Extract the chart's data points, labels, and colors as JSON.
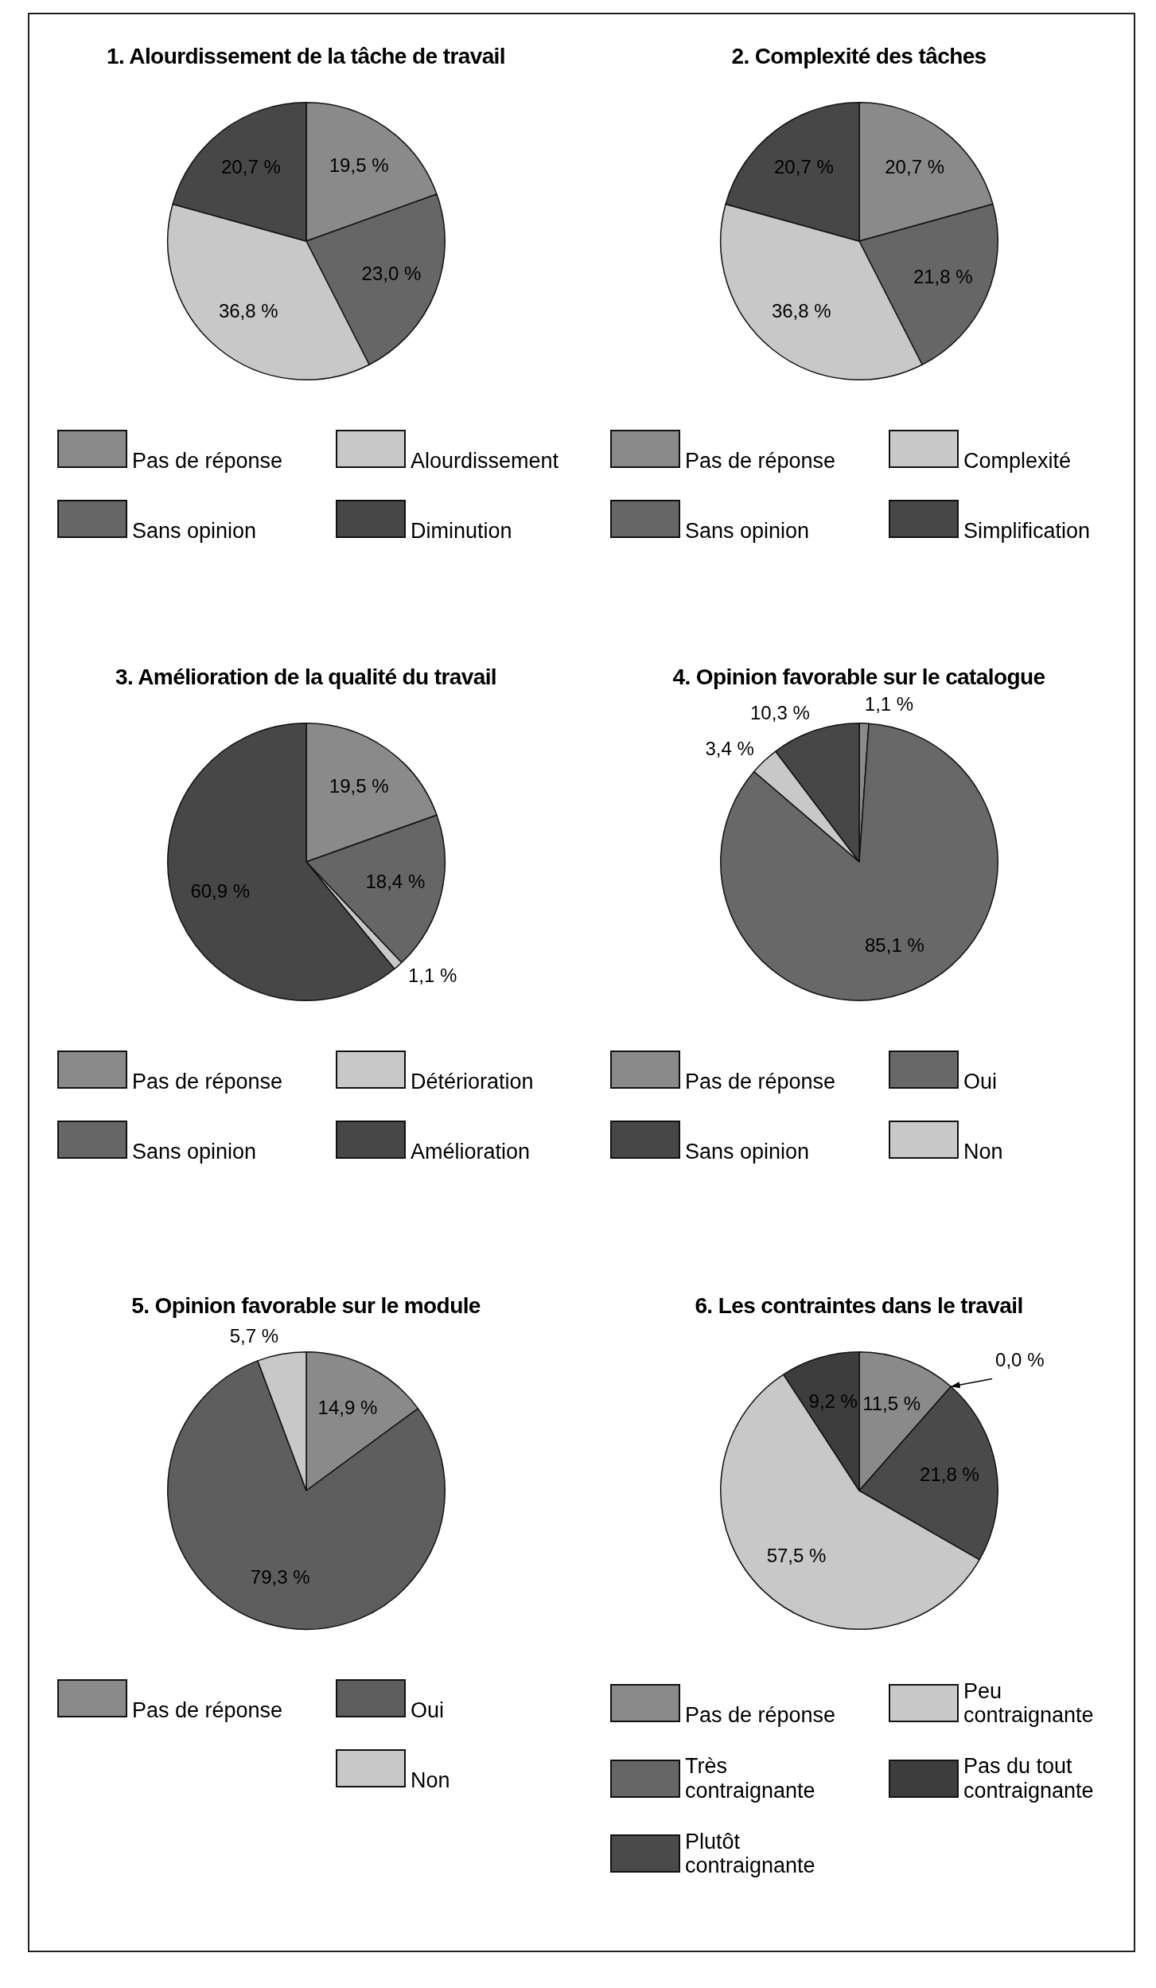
{
  "chart_data": [
    {
      "type": "pie",
      "title": "1. Alourdissement de la tâche de travail",
      "categories": [
        "Pas de réponse",
        "Sans opinion",
        "Alourdissement",
        "Diminution"
      ],
      "values": [
        19.5,
        23.0,
        36.8,
        20.7
      ],
      "colors": [
        "#8a8a8a",
        "#666666",
        "#c8c8c8",
        "#474747"
      ],
      "value_labels": [
        "19,5 %",
        "23,0 %",
        "36,8 %",
        "20,7 %"
      ],
      "legend": "bottom"
    },
    {
      "type": "pie",
      "title": "2. Complexité des tâches",
      "categories": [
        "Pas de réponse",
        "Sans opinion",
        "Complexité",
        "Simplification"
      ],
      "values": [
        20.7,
        21.8,
        36.8,
        20.7
      ],
      "colors": [
        "#8a8a8a",
        "#666666",
        "#c8c8c8",
        "#474747"
      ],
      "value_labels": [
        "20,7 %",
        "21,8 %",
        "36,8 %",
        "20,7 %"
      ],
      "legend": "bottom"
    },
    {
      "type": "pie",
      "title": "3. Amélioration de la qualité du travail",
      "categories": [
        "Pas de réponse",
        "Sans opinion",
        "Détérioration",
        "Amélioration"
      ],
      "values": [
        19.5,
        18.4,
        1.1,
        60.9
      ],
      "colors": [
        "#8a8a8a",
        "#666666",
        "#c8c8c8",
        "#474747"
      ],
      "value_labels": [
        "19,5 %",
        "18,4 %",
        "1,1 %",
        "60,9 %"
      ],
      "legend": "bottom"
    },
    {
      "type": "pie",
      "title": "4. Opinion favorable sur le catalogue",
      "categories": [
        "Pas de réponse",
        "Oui",
        "Non",
        "Sans opinion"
      ],
      "values": [
        1.1,
        85.1,
        3.4,
        10.3
      ],
      "colors": [
        "#8a8a8a",
        "#686868",
        "#c8c8c8",
        "#474747"
      ],
      "value_labels": [
        "1,1 %",
        "85,1 %",
        "3,4 %",
        "10,3 %"
      ],
      "legend": "bottom"
    },
    {
      "type": "pie",
      "title": "5. Opinion favorable sur le module",
      "categories": [
        "Pas de réponse",
        "Oui",
        "Non"
      ],
      "values": [
        14.9,
        79.3,
        5.7
      ],
      "colors": [
        "#8a8a8a",
        "#5e5e5e",
        "#c8c8c8"
      ],
      "value_labels": [
        "14,9 %",
        "79,3 %",
        "5,7 %"
      ],
      "legend": "bottom"
    },
    {
      "type": "pie",
      "title": "6. Les contraintes dans le travail",
      "categories": [
        "Pas de réponse",
        "Très contraignante",
        "Plutôt contraignante",
        "Peu contraignante",
        "Pas du tout contraignante"
      ],
      "values": [
        11.5,
        0.0,
        21.8,
        57.5,
        9.2
      ],
      "colors": [
        "#8a8a8a",
        "#666666",
        "#4a4a4a",
        "#c8c8c8",
        "#3d3d3d"
      ],
      "value_labels": [
        "11,5 %",
        "0,0 %",
        "21,8 %",
        "57,5 %",
        "9,2 %"
      ],
      "legend": "bottom"
    }
  ]
}
